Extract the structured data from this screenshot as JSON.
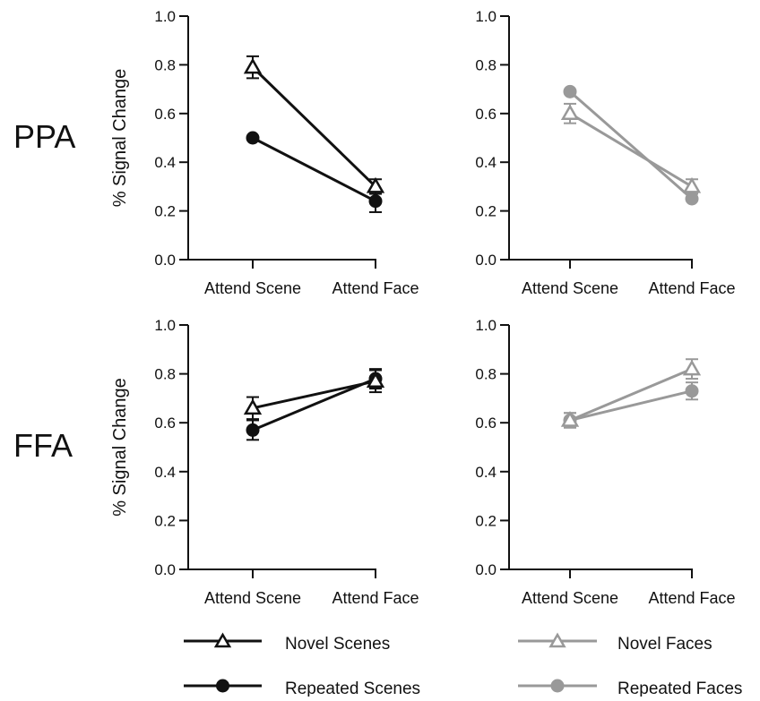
{
  "figure": {
    "row_labels": [
      "PPA",
      "FFA"
    ],
    "legend": {
      "novel_scenes": "Novel Scenes",
      "repeated_scenes": "Repeated Scenes",
      "novel_faces": "Novel Faces",
      "repeated_faces": "Repeated Faces"
    },
    "colors": {
      "scenes": "#111111",
      "faces": "#999999"
    }
  },
  "chart_data": [
    {
      "type": "line",
      "row": "PPA",
      "categories": [
        "Attend Scene",
        "Attend Face"
      ],
      "ylabel": "% Signal Change",
      "ylim": [
        0,
        1
      ],
      "yticks": [
        "0.0",
        "0.2",
        "0.4",
        "0.6",
        "0.8",
        "1.0"
      ],
      "series": [
        {
          "name": "Novel Scenes",
          "marker": "triangle-open",
          "color": "#111111",
          "values": [
            0.79,
            0.3
          ],
          "errors": [
            0.045,
            0.03
          ]
        },
        {
          "name": "Repeated Scenes",
          "marker": "circle-filled",
          "color": "#111111",
          "values": [
            0.5,
            0.24
          ],
          "errors": [
            0.0,
            0.045
          ]
        }
      ]
    },
    {
      "type": "line",
      "row": "PPA",
      "categories": [
        "Attend Scene",
        "Attend Face"
      ],
      "ylabel": "",
      "ylim": [
        0,
        1
      ],
      "yticks": [
        "0.0",
        "0.2",
        "0.4",
        "0.6",
        "0.8",
        "1.0"
      ],
      "series": [
        {
          "name": "Novel Faces",
          "marker": "triangle-open",
          "color": "#999999",
          "values": [
            0.6,
            0.3
          ],
          "errors": [
            0.04,
            0.03
          ]
        },
        {
          "name": "Repeated Faces",
          "marker": "circle-filled",
          "color": "#999999",
          "values": [
            0.69,
            0.25
          ],
          "errors": [
            0.0,
            0.0
          ]
        }
      ]
    },
    {
      "type": "line",
      "row": "FFA",
      "categories": [
        "Attend Scene",
        "Attend Face"
      ],
      "ylabel": "% Signal Change",
      "ylim": [
        0,
        1
      ],
      "yticks": [
        "0.0",
        "0.2",
        "0.4",
        "0.6",
        "0.8",
        "1.0"
      ],
      "series": [
        {
          "name": "Novel Scenes",
          "marker": "triangle-open",
          "color": "#111111",
          "values": [
            0.66,
            0.77
          ],
          "errors": [
            0.045,
            0.045
          ]
        },
        {
          "name": "Repeated Scenes",
          "marker": "circle-filled",
          "color": "#111111",
          "values": [
            0.57,
            0.78
          ],
          "errors": [
            0.04,
            0.04
          ]
        }
      ]
    },
    {
      "type": "line",
      "row": "FFA",
      "categories": [
        "Attend Scene",
        "Attend Face"
      ],
      "ylabel": "",
      "ylim": [
        0,
        1
      ],
      "yticks": [
        "0.0",
        "0.2",
        "0.4",
        "0.6",
        "0.8",
        "1.0"
      ],
      "series": [
        {
          "name": "Novel Faces",
          "marker": "triangle-open",
          "color": "#999999",
          "values": [
            0.61,
            0.82
          ],
          "errors": [
            0.03,
            0.04
          ]
        },
        {
          "name": "Repeated Faces",
          "marker": "circle-filled",
          "color": "#999999",
          "values": [
            0.61,
            0.73
          ],
          "errors": [
            0.03,
            0.035
          ]
        }
      ]
    }
  ]
}
